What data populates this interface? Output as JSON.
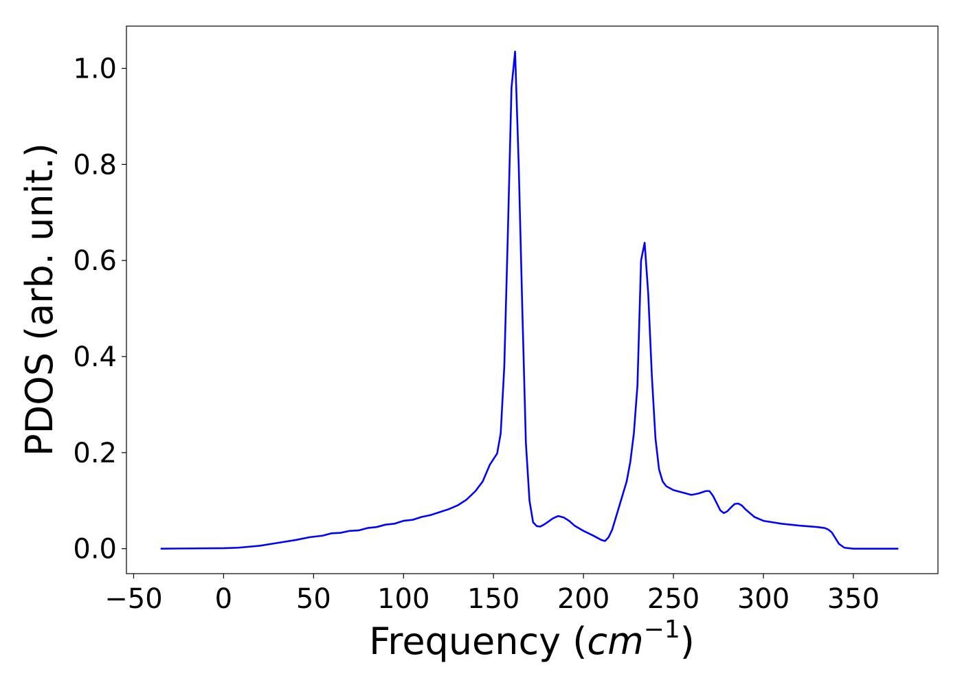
{
  "chart_data": {
    "type": "line",
    "xlabel": "Frequency (cm⁻¹)",
    "xlabel_parts": {
      "prefix": "Frequency (",
      "math": "cm",
      "sup": "−1",
      "suffix": ")"
    },
    "ylabel": "PDOS (arb. unit.)",
    "xlim": [
      -54,
      397
    ],
    "ylim": [
      -0.052,
      1.088
    ],
    "x_ticks": [
      -50,
      0,
      50,
      100,
      150,
      200,
      250,
      300,
      350
    ],
    "x_tick_labels": [
      "−50",
      "0",
      "50",
      "100",
      "150",
      "200",
      "250",
      "300",
      "350"
    ],
    "y_ticks": [
      0.0,
      0.2,
      0.4,
      0.6,
      0.8,
      1.0
    ],
    "y_tick_labels": [
      "0.0",
      "0.2",
      "0.4",
      "0.6",
      "0.8",
      "1.0"
    ],
    "grid": false,
    "series": [
      {
        "color": "#0000ff",
        "x": [
          -35,
          0,
          8,
          20,
          30,
          40,
          48,
          55,
          60,
          65,
          70,
          75,
          80,
          85,
          90,
          95,
          100,
          105,
          110,
          115,
          120,
          125,
          130,
          135,
          140,
          144,
          148,
          152,
          154,
          156,
          158,
          160,
          162,
          164,
          166,
          168,
          170,
          172,
          174,
          176,
          178,
          180,
          183,
          186,
          189,
          192,
          195,
          200,
          205,
          210,
          212,
          214,
          216,
          220,
          224,
          226,
          228,
          230,
          232,
          234,
          236,
          238,
          240,
          242,
          244,
          246,
          250,
          255,
          260,
          264,
          268,
          270,
          272,
          274,
          276,
          278,
          280,
          282,
          284,
          286,
          288,
          290,
          295,
          300,
          310,
          320,
          330,
          334,
          336,
          338,
          340,
          342,
          345,
          350,
          360,
          375
        ],
        "y": [
          0.0,
          0.001,
          0.002,
          0.006,
          0.012,
          0.018,
          0.024,
          0.027,
          0.032,
          0.033,
          0.037,
          0.038,
          0.043,
          0.045,
          0.05,
          0.052,
          0.058,
          0.06,
          0.066,
          0.07,
          0.076,
          0.082,
          0.09,
          0.102,
          0.12,
          0.14,
          0.175,
          0.198,
          0.24,
          0.38,
          0.66,
          0.96,
          1.035,
          0.8,
          0.5,
          0.22,
          0.1,
          0.055,
          0.047,
          0.046,
          0.05,
          0.055,
          0.063,
          0.068,
          0.065,
          0.058,
          0.048,
          0.037,
          0.028,
          0.018,
          0.016,
          0.024,
          0.04,
          0.09,
          0.14,
          0.18,
          0.24,
          0.34,
          0.6,
          0.637,
          0.53,
          0.36,
          0.23,
          0.165,
          0.14,
          0.13,
          0.122,
          0.117,
          0.112,
          0.115,
          0.12,
          0.12,
          0.11,
          0.095,
          0.08,
          0.074,
          0.078,
          0.086,
          0.093,
          0.094,
          0.09,
          0.082,
          0.066,
          0.058,
          0.052,
          0.048,
          0.045,
          0.043,
          0.04,
          0.034,
          0.022,
          0.01,
          0.002,
          0.0,
          0.0,
          0.0
        ]
      }
    ]
  }
}
